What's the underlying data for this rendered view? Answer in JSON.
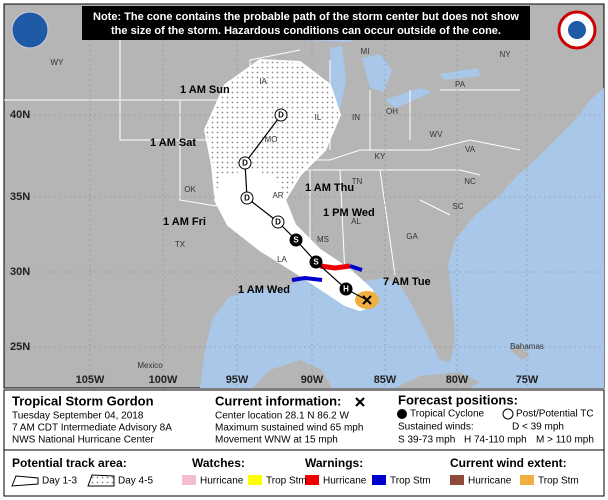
{
  "note": [
    "Note: The cone contains the probable path of the storm center but does not show",
    "the size of the storm. Hazardous conditions can occur outside of the cone."
  ],
  "map": {
    "latitude_labels": [
      "40N",
      "35N",
      "30N",
      "25N"
    ],
    "longitude_labels": [
      "105W",
      "100W",
      "95W",
      "90W",
      "85W",
      "80W",
      "75W"
    ],
    "region_labels": [
      "WY",
      "IA",
      "IL",
      "IN",
      "OH",
      "PA",
      "NY",
      "MI",
      "MO",
      "KY",
      "WV",
      "VA",
      "TN",
      "NC",
      "SC",
      "GA",
      "AL",
      "MS",
      "LA",
      "AR",
      "OK",
      "TX",
      "Mexico",
      "Bahamas"
    ],
    "forecast_labels": [
      "1 AM Sun",
      "1 AM Sat",
      "1 AM Thu",
      "1 AM Fri",
      "1 PM Wed",
      "7 AM Tue",
      "1 AM Wed"
    ],
    "track_points": [
      "D",
      "D",
      "D",
      "D",
      "S",
      "S",
      "H"
    ]
  },
  "info": {
    "storm": {
      "title": "Tropical Storm Gordon",
      "lines": [
        "Tuesday September 04, 2018",
        "7 AM CDT Intermediate Advisory 8A",
        "NWS National Hurricane Center"
      ]
    },
    "current": {
      "title": "Current information:",
      "lines": [
        "Center location 28.1 N 86.2 W",
        "Maximum sustained wind 65 mph",
        "Movement WNW at 15 mph"
      ]
    },
    "forecast": {
      "title": "Forecast positions:",
      "tropical": "Tropical Cyclone",
      "post": "Post/Potential TC",
      "winds_title": "Sustained winds:",
      "d": "D < 39 mph",
      "s": "S 39-73 mph",
      "h": "H 74-110 mph",
      "m": "M > 110 mph"
    }
  },
  "legend": {
    "track": {
      "title": "Potential track area:",
      "items": [
        "Day 1-3",
        "Day 4-5"
      ]
    },
    "watches": {
      "title": "Watches:",
      "items": [
        "Hurricane",
        "Trop Stm"
      ]
    },
    "warnings": {
      "title": "Warnings:",
      "items": [
        "Hurricane",
        "Trop Stm"
      ]
    },
    "wind": {
      "title": "Current wind extent:",
      "items": [
        "Hurricane",
        "Trop Stm"
      ]
    }
  }
}
